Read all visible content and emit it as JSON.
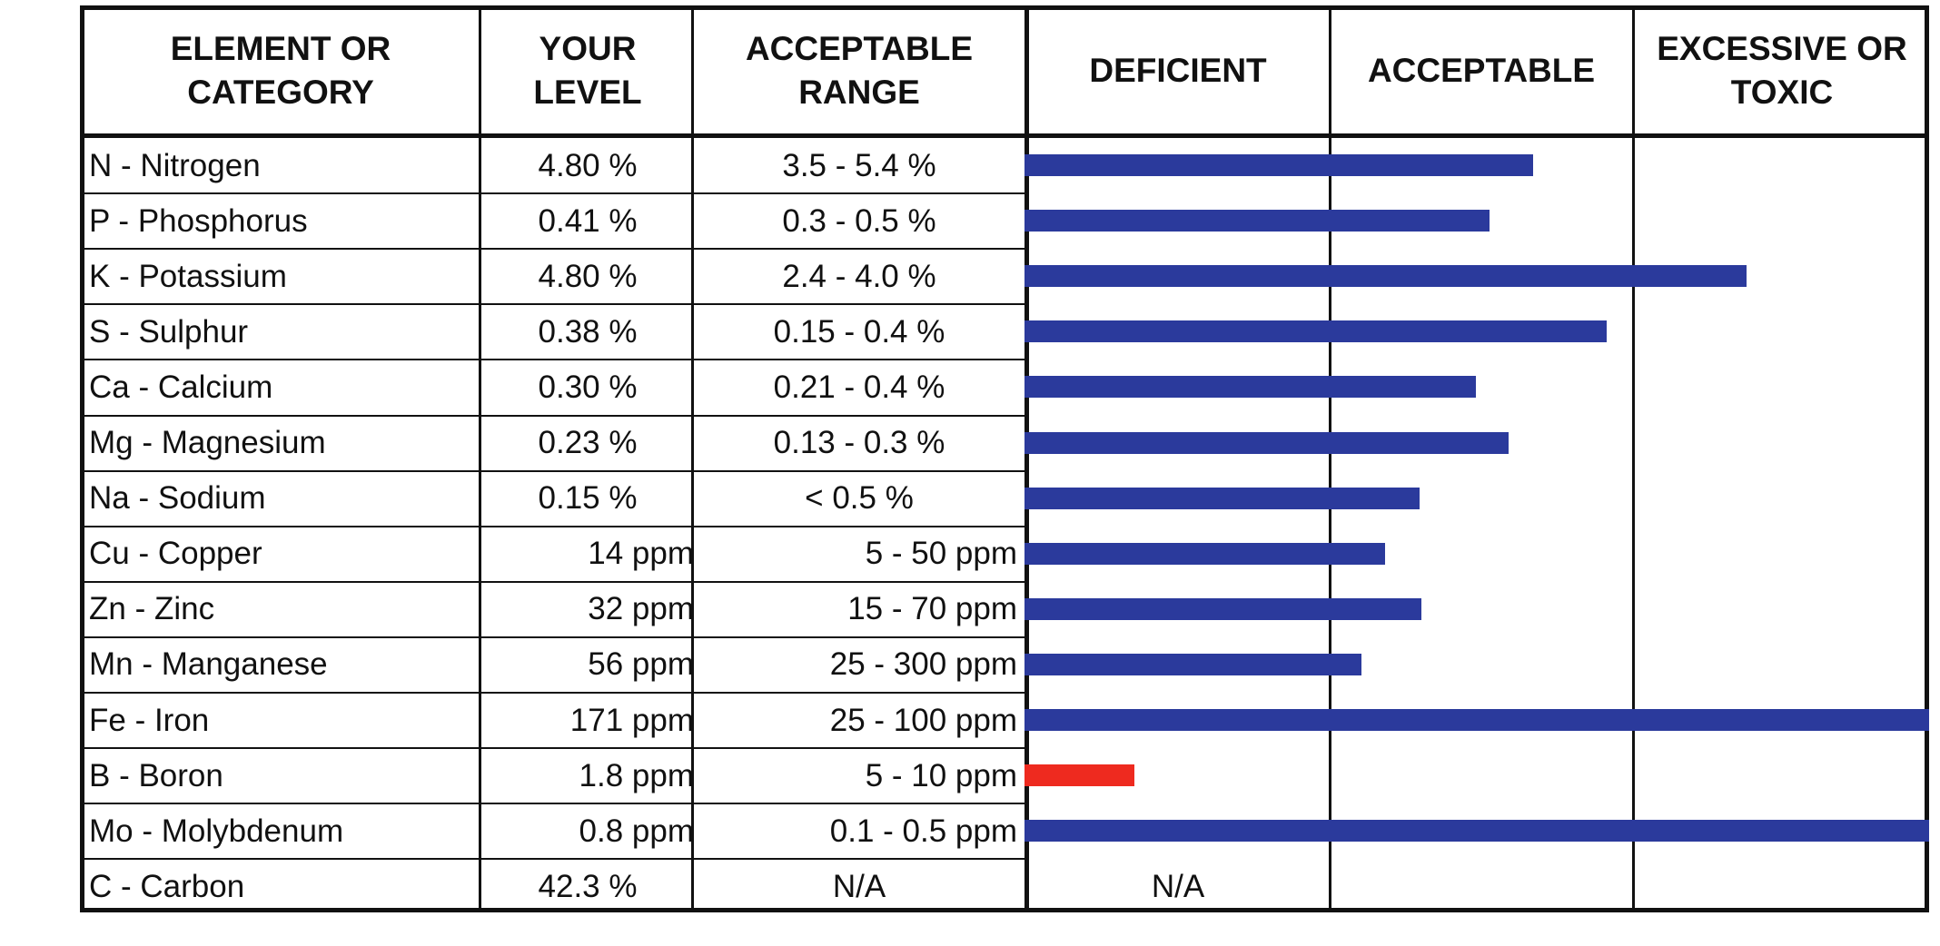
{
  "headers": {
    "element": "ELEMENT OR\nCATEGORY",
    "level": "YOUR\nLEVEL",
    "range": "ACCEPTABLE\nRANGE",
    "deficient": "DEFICIENT",
    "acceptable": "ACCEPTABLE",
    "excessive": "EXCESSIVE OR\nTOXIC"
  },
  "colors": {
    "normal_bar": "#2b3a9c",
    "deficient_bar": "#ee2a1f"
  },
  "rows": [
    {
      "name": "N - Nitrogen",
      "level": "4.80 %",
      "range": "3.5 - 5.4 %",
      "bar_fraction": 0.56,
      "status": "acceptable"
    },
    {
      "name": "P - Phosphorus",
      "level": "0.41 %",
      "range": "0.3 - 0.5 %",
      "bar_fraction": 0.512,
      "status": "acceptable"
    },
    {
      "name": "K - Potassium",
      "level": "4.80 %",
      "range": "2.4 - 4.0 %",
      "bar_fraction": 0.797,
      "status": "excessive"
    },
    {
      "name": "S - Sulphur",
      "level": "0.38 %",
      "range": "0.15 - 0.4 %",
      "bar_fraction": 0.642,
      "status": "acceptable"
    },
    {
      "name": "Ca - Calcium",
      "level": "0.30 %",
      "range": "0.21 - 0.4 %",
      "bar_fraction": 0.497,
      "status": "acceptable"
    },
    {
      "name": "Mg - Magnesium",
      "level": "0.23 %",
      "range": "0.13 - 0.3 %",
      "bar_fraction": 0.533,
      "status": "acceptable"
    },
    {
      "name": "Na - Sodium",
      "level": "0.15 %",
      "range": "< 0.5 %",
      "bar_fraction": 0.434,
      "status": "acceptable"
    },
    {
      "name": "Cu - Copper",
      "level": "14 ppm",
      "range": "5 - 50 ppm",
      "bar_fraction": 0.396,
      "status": "acceptable"
    },
    {
      "name": "Zn - Zinc",
      "level": "32 ppm",
      "range": "15 - 70 ppm",
      "bar_fraction": 0.436,
      "status": "acceptable"
    },
    {
      "name": "Mn - Manganese",
      "level": "56 ppm",
      "range": "25 - 300 ppm",
      "bar_fraction": 0.37,
      "status": "acceptable"
    },
    {
      "name": "Fe - Iron",
      "level": "171 ppm",
      "range": "25 - 100 ppm",
      "bar_fraction": 1.0,
      "status": "excessive"
    },
    {
      "name": "B - Boron",
      "level": "1.8 ppm",
      "range": "5 - 10 ppm",
      "bar_fraction": 0.118,
      "status": "deficient"
    },
    {
      "name": "Mo - Molybdenum",
      "level": "0.8 ppm",
      "range": "0.1 - 0.5 ppm",
      "bar_fraction": 1.0,
      "status": "excessive"
    },
    {
      "name": "C - Carbon",
      "level": "42.3 %",
      "range": "N/A",
      "bar_fraction": null,
      "status": "na",
      "bar_text": "N/A"
    }
  ]
}
